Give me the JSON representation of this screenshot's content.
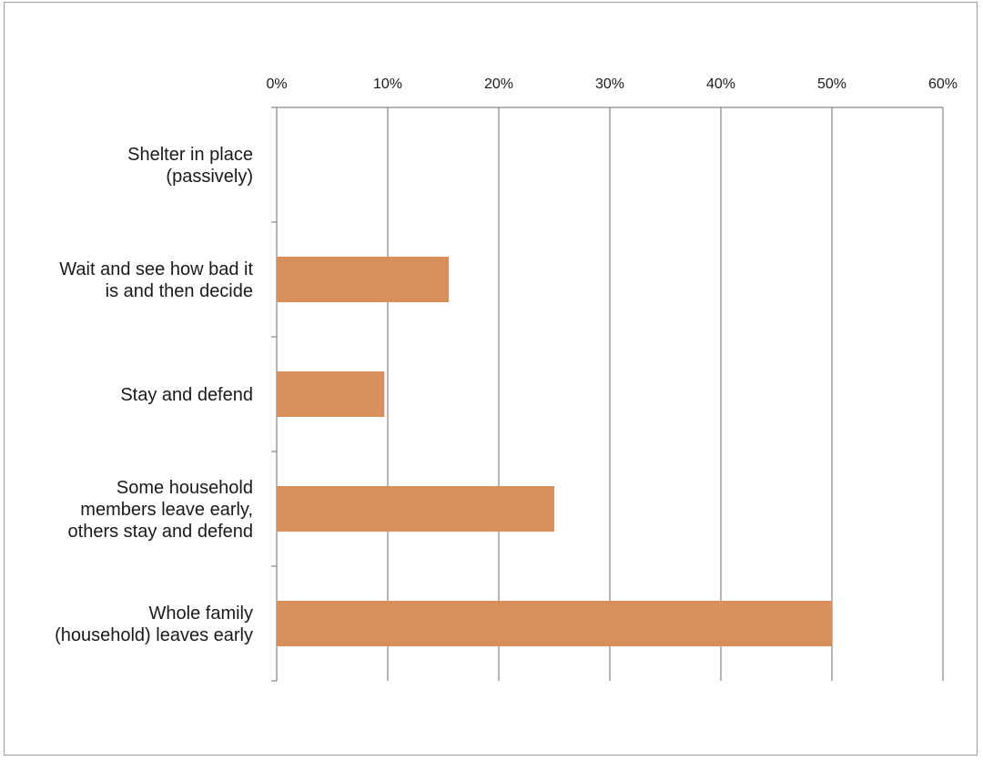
{
  "chart_data": {
    "type": "bar",
    "orientation": "horizontal",
    "title": "",
    "xlabel": "",
    "ylabel": "",
    "xlim": [
      0,
      60
    ],
    "x_ticks": [
      "0%",
      "10%",
      "20%",
      "30%",
      "40%",
      "50%",
      "60%"
    ],
    "x_tick_values": [
      0,
      10,
      20,
      30,
      40,
      50,
      60
    ],
    "x_axis_position": "top",
    "grid": "vertical",
    "legend": "none",
    "bar_color": "#D98F5C",
    "categories": [
      [
        "Shelter in place",
        "(passively)"
      ],
      [
        "Wait and see how bad it",
        "is and then decide"
      ],
      [
        "Stay and defend"
      ],
      [
        "Some household",
        "members leave early,",
        "others stay and defend"
      ],
      [
        "Whole family",
        "(household) leaves early"
      ]
    ],
    "values": [
      0,
      15.5,
      9.7,
      25,
      50
    ]
  }
}
